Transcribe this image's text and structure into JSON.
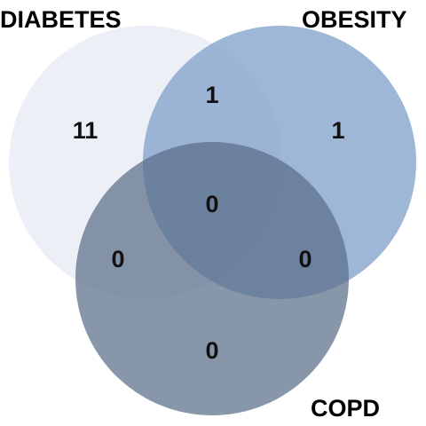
{
  "venn": {
    "sets": [
      {
        "key": "a",
        "label": "DIABETES",
        "color": "#eceef6"
      },
      {
        "key": "b",
        "label": "OBESITY",
        "color": "#8aa8cf"
      },
      {
        "key": "c",
        "label": "COPD",
        "color": "#6a7d95"
      }
    ],
    "regions": {
      "a_only": "11",
      "b_only": "1",
      "c_only": "0",
      "ab": "1",
      "ac": "0",
      "bc": "0",
      "abc": "0"
    }
  }
}
